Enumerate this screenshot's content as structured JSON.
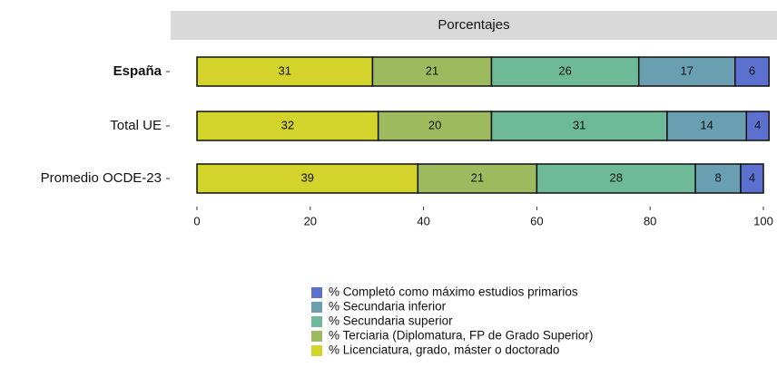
{
  "chart_data": {
    "type": "stacked-barh",
    "facet": "Porcentajes",
    "categories": [
      "España",
      "Total UE",
      "Promedio OCDE-23"
    ],
    "series": [
      {
        "name": "% Licenciatura, grado, máster o doctorado",
        "color": "#d3d32c",
        "values": [
          31,
          32,
          39
        ]
      },
      {
        "name": "% Terciaria (Diplomatura, FP de Grado Superior)",
        "color": "#9dbb5e",
        "values": [
          21,
          20,
          21
        ]
      },
      {
        "name": "% Secundaria superior",
        "color": "#6eba98",
        "values": [
          26,
          31,
          28
        ]
      },
      {
        "name": "% Secundaria inferior",
        "color": "#6a9fb1",
        "values": [
          17,
          14,
          8
        ]
      },
      {
        "name": "% Completó como máximo estudios primarios",
        "color": "#5b70cf",
        "values": [
          6,
          4,
          4
        ]
      }
    ],
    "xlim": [
      0,
      100
    ],
    "xticks": [
      0,
      20,
      40,
      60,
      80,
      100
    ]
  }
}
